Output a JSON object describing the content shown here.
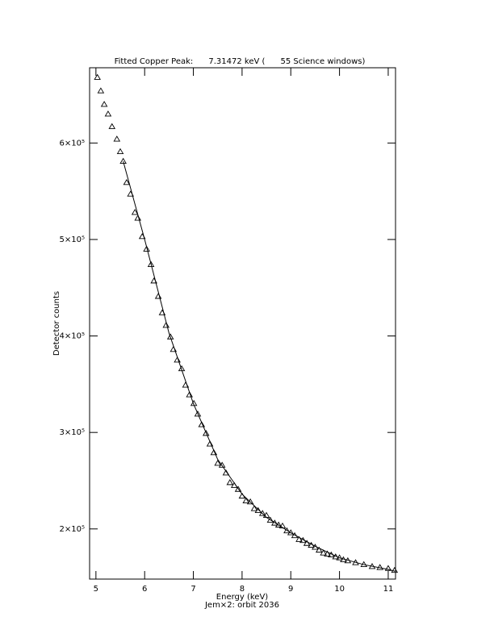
{
  "chart_data": {
    "type": "scatter",
    "title": "Fitted Copper Peak:      7.31472 keV (      55 Science windows)",
    "xlabel": "Energy (keV)",
    "subtitle": "Jem×2: orbit 2036",
    "ylabel": "Detector counts",
    "xlim": [
      4.87,
      11.15
    ],
    "ylim": [
      148000,
      678000
    ],
    "xticks": [
      5,
      6,
      7,
      8,
      9,
      10,
      11
    ],
    "yticks": [
      {
        "value": 200000,
        "label": "2×10⁵"
      },
      {
        "value": 300000,
        "label": "3×10⁵"
      },
      {
        "value": 400000,
        "label": "4×10⁵"
      },
      {
        "value": 500000,
        "label": "5×10⁵"
      },
      {
        "value": 600000,
        "label": "6×10⁵"
      }
    ],
    "x": [
      5.03,
      5.1,
      5.17,
      5.25,
      5.33,
      5.43,
      5.5,
      5.56,
      5.63,
      5.71,
      5.8,
      5.86,
      5.95,
      6.04,
      6.13,
      6.19,
      6.28,
      6.36,
      6.44,
      6.53,
      6.59,
      6.67,
      6.76,
      6.84,
      6.92,
      7.01,
      7.09,
      7.17,
      7.26,
      7.34,
      7.42,
      7.5,
      7.59,
      7.67,
      7.75,
      7.84,
      7.92,
      8.0,
      8.08,
      8.17,
      8.25,
      8.33,
      8.42,
      8.5,
      8.58,
      8.67,
      8.75,
      8.83,
      8.92,
      9.0,
      9.08,
      9.17,
      9.25,
      9.33,
      9.42,
      9.5,
      9.58,
      9.67,
      9.75,
      9.83,
      9.92,
      10.0,
      10.08,
      10.17,
      10.33,
      10.5,
      10.67,
      10.83,
      11.0,
      11.13
    ],
    "series": [
      {
        "color": "#000000",
        "marker": "triangle",
        "values": [
          668000,
          654000,
          640000,
          630000,
          617000,
          604000,
          591000,
          581000,
          559000,
          547000,
          528000,
          522000,
          503000,
          490000,
          474000,
          457000,
          441000,
          424000,
          411000,
          399000,
          386000,
          375000,
          366000,
          349000,
          339000,
          330000,
          319000,
          308000,
          299000,
          288000,
          279000,
          268000,
          266000,
          258000,
          248000,
          245000,
          241000,
          234000,
          229000,
          228000,
          221000,
          219000,
          216000,
          214000,
          209000,
          206000,
          204000,
          203000,
          198000,
          196000,
          193000,
          189000,
          188000,
          185000,
          183000,
          181000,
          178000,
          175000,
          174000,
          173000,
          171000,
          170000,
          168000,
          167000,
          165000,
          163000,
          161000,
          160000,
          159000,
          157000
        ]
      },
      {
        "color": "#000000",
        "marker": "line",
        "x": [
          5.56,
          6,
          6.5,
          7,
          7.5,
          8,
          8.5,
          9,
          9.5,
          10,
          10.5,
          11,
          11.15
        ],
        "values": [
          581000,
          500000,
          403000,
          330000,
          272000,
          236000,
          212000,
          196000,
          182000,
          170000,
          163000,
          158000,
          156000
        ]
      }
    ]
  }
}
